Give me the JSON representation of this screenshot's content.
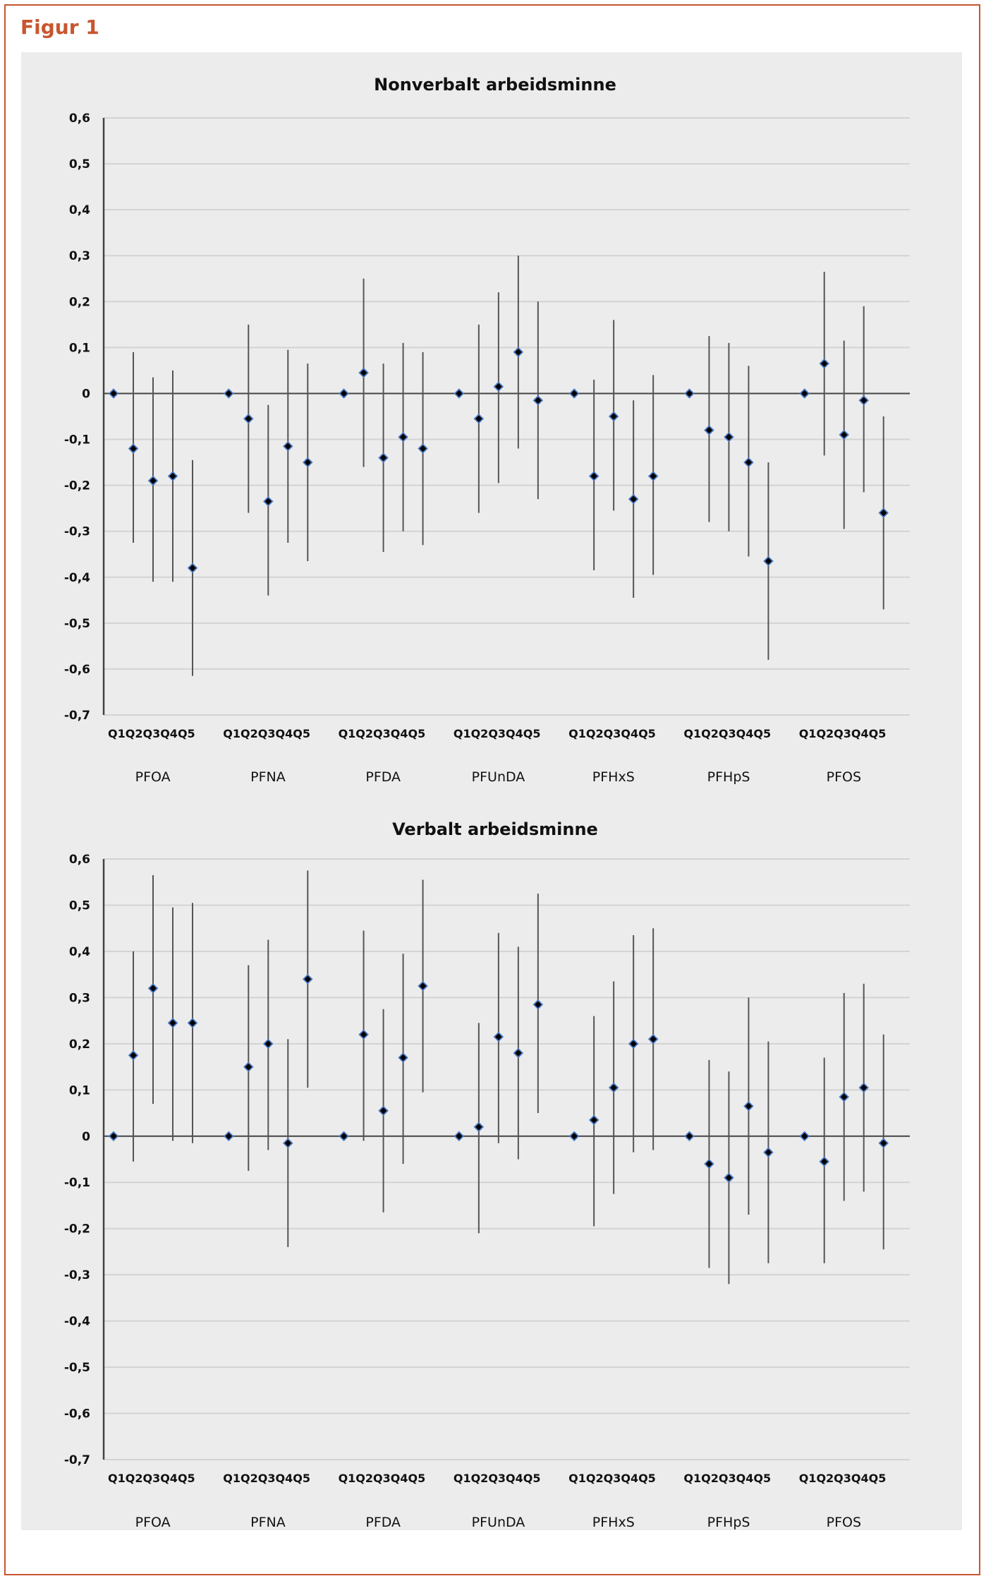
{
  "figure": {
    "title": "Figur 1"
  },
  "colors": {
    "accent": "#c8562f",
    "panel_bg": "#ececec",
    "grid": "#d3d3d3",
    "axis": "#444444",
    "marker_fill": "#000000",
    "marker_edge": "#4a78c2",
    "errorbar": "#555555"
  },
  "chart_data": [
    {
      "type": "scatter",
      "title": "Nonverbalt arbeidsminne",
      "xlabel": "",
      "ylabel": "",
      "ylim": [
        -0.7,
        0.6
      ],
      "yticks": [
        "0,6",
        "0,5",
        "0,4",
        "0,3",
        "0,2",
        "0,1",
        "0",
        "-0,1",
        "-0,2",
        "-0,3",
        "-0,4",
        "-0,5",
        "-0,6",
        "-0,7"
      ],
      "ytick_values": [
        0.6,
        0.5,
        0.4,
        0.3,
        0.2,
        0.1,
        0,
        -0.1,
        -0.2,
        -0.3,
        -0.4,
        -0.5,
        -0.6,
        -0.7
      ],
      "grid": true,
      "quintiles": [
        "Q1",
        "Q2",
        "Q3",
        "Q4",
        "Q5"
      ],
      "quintile_label": "Q1Q2Q3Q4Q5",
      "categories": [
        "PFOA",
        "PFNA",
        "PFDA",
        "PFUnDA",
        "PFHxS",
        "PFHpS",
        "PFOS"
      ],
      "series": [
        {
          "name": "PFOA",
          "values": [
            0,
            -0.12,
            -0.19,
            -0.18,
            -0.38
          ],
          "lower": [
            0,
            -0.325,
            -0.41,
            -0.41,
            -0.615
          ],
          "upper": [
            0,
            0.09,
            0.035,
            0.05,
            -0.145
          ]
        },
        {
          "name": "PFNA",
          "values": [
            0,
            -0.055,
            -0.235,
            -0.115,
            -0.15
          ],
          "lower": [
            0,
            -0.26,
            -0.44,
            -0.325,
            -0.365
          ],
          "upper": [
            0,
            0.15,
            -0.025,
            0.095,
            0.065
          ]
        },
        {
          "name": "PFDA",
          "values": [
            0,
            0.045,
            -0.14,
            -0.095,
            -0.12
          ],
          "lower": [
            0,
            -0.16,
            -0.345,
            -0.3,
            -0.33
          ],
          "upper": [
            0,
            0.25,
            0.065,
            0.11,
            0.09
          ]
        },
        {
          "name": "PFUnDA",
          "values": [
            0,
            -0.055,
            0.015,
            0.09,
            -0.015
          ],
          "lower": [
            0,
            -0.26,
            -0.195,
            -0.12,
            -0.23
          ],
          "upper": [
            0,
            0.15,
            0.22,
            0.3,
            0.2
          ]
        },
        {
          "name": "PFHxS",
          "values": [
            0,
            -0.18,
            -0.05,
            -0.23,
            -0.18
          ],
          "lower": [
            0,
            -0.385,
            -0.255,
            -0.445,
            -0.395
          ],
          "upper": [
            0,
            0.03,
            0.16,
            -0.015,
            0.04
          ]
        },
        {
          "name": "PFHpS",
          "values": [
            0,
            -0.08,
            -0.095,
            -0.15,
            -0.365
          ],
          "lower": [
            0,
            -0.28,
            -0.3,
            -0.355,
            -0.58
          ],
          "upper": [
            0,
            0.125,
            0.11,
            0.06,
            -0.15
          ]
        },
        {
          "name": "PFOS",
          "values": [
            0,
            0.065,
            -0.09,
            -0.015,
            -0.26
          ],
          "lower": [
            0,
            -0.135,
            -0.295,
            -0.215,
            -0.47
          ],
          "upper": [
            0,
            0.265,
            0.115,
            0.19,
            -0.05
          ]
        }
      ]
    },
    {
      "type": "scatter",
      "title": "Verbalt arbeidsminne",
      "xlabel": "",
      "ylabel": "",
      "ylim": [
        -0.7,
        0.6
      ],
      "yticks": [
        "0,6",
        "0,5",
        "0,4",
        "0,3",
        "0,2",
        "0,1",
        "0",
        "-0,1",
        "-0,2",
        "-0,3",
        "-0,4",
        "-0,5",
        "-0,6",
        "-0,7"
      ],
      "ytick_values": [
        0.6,
        0.5,
        0.4,
        0.3,
        0.2,
        0.1,
        0,
        -0.1,
        -0.2,
        -0.3,
        -0.4,
        -0.5,
        -0.6,
        -0.7
      ],
      "grid": true,
      "quintiles": [
        "Q1",
        "Q2",
        "Q3",
        "Q4",
        "Q5"
      ],
      "quintile_label": "Q1Q2Q3Q4Q5",
      "categories": [
        "PFOA",
        "PFNA",
        "PFDA",
        "PFUnDA",
        "PFHxS",
        "PFHpS",
        "PFOS"
      ],
      "series": [
        {
          "name": "PFOA",
          "values": [
            0,
            0.175,
            0.32,
            0.245,
            0.245
          ],
          "lower": [
            0,
            -0.055,
            0.07,
            -0.01,
            -0.015
          ],
          "upper": [
            0,
            0.4,
            0.565,
            0.495,
            0.505
          ]
        },
        {
          "name": "PFNA",
          "values": [
            0,
            0.15,
            0.2,
            -0.015,
            0.34
          ],
          "lower": [
            0,
            -0.075,
            -0.03,
            -0.24,
            0.105
          ],
          "upper": [
            0,
            0.37,
            0.425,
            0.21,
            0.575
          ]
        },
        {
          "name": "PFDA",
          "values": [
            0,
            0.22,
            0.055,
            0.17,
            0.325
          ],
          "lower": [
            0,
            -0.01,
            -0.165,
            -0.06,
            0.095
          ],
          "upper": [
            0,
            0.445,
            0.275,
            0.395,
            0.555
          ]
        },
        {
          "name": "PFUnDA",
          "values": [
            0,
            0.02,
            0.215,
            0.18,
            0.285
          ],
          "lower": [
            0,
            -0.21,
            -0.015,
            -0.05,
            0.05
          ],
          "upper": [
            0,
            0.245,
            0.44,
            0.41,
            0.525
          ]
        },
        {
          "name": "PFHxS",
          "values": [
            0,
            0.035,
            0.105,
            0.2,
            0.21
          ],
          "lower": [
            0,
            -0.195,
            -0.125,
            -0.035,
            -0.03
          ],
          "upper": [
            0,
            0.26,
            0.335,
            0.435,
            0.45
          ]
        },
        {
          "name": "PFHpS",
          "values": [
            0,
            -0.06,
            -0.09,
            0.065,
            -0.035
          ],
          "lower": [
            0,
            -0.285,
            -0.32,
            -0.17,
            -0.275
          ],
          "upper": [
            0,
            0.165,
            0.14,
            0.3,
            0.205
          ]
        },
        {
          "name": "PFOS",
          "values": [
            0,
            -0.055,
            0.085,
            0.105,
            -0.015
          ],
          "lower": [
            0,
            -0.275,
            -0.14,
            -0.12,
            -0.245
          ],
          "upper": [
            0,
            0.17,
            0.31,
            0.33,
            0.22
          ]
        }
      ]
    }
  ]
}
